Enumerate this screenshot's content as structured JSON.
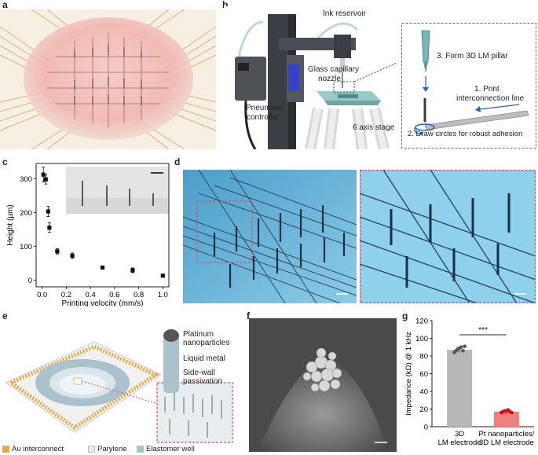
{
  "panels": {
    "a": "a",
    "b": "b",
    "c": "c",
    "d": "d",
    "e": "e",
    "f": "f",
    "g": "g"
  },
  "panel_b": {
    "ink_reservoir": "Ink reservoir",
    "glass_capillary": "Glass capillary",
    "nozzle": "nozzle",
    "pneumatic": "Pneumatic",
    "controller": "controller",
    "stage": "6 axis stage",
    "step3": "3. Form 3D LM pillar",
    "step1a": "1. Print",
    "step1b": "interconnection line",
    "step2": "2. Draw circles for robust adhesion"
  },
  "panel_e": {
    "pt1": "Platinum",
    "pt2": "nanoparticles",
    "lm": "Liquid metal",
    "sw1": "Side-wall",
    "sw2": "passivation",
    "legend": [
      {
        "label": "Au interconnect",
        "color": "#e9a93c"
      },
      {
        "label": "Parylene",
        "color": "#e8e8e8"
      },
      {
        "label": "Elastomer well",
        "color": "#a9c2cc"
      }
    ]
  },
  "chart_data": [
    {
      "type": "scatter",
      "panel": "c",
      "xlabel": "Printing velocity (mm/s)",
      "ylabel": "Height (µm)",
      "xlim": [
        -0.05,
        1.05
      ],
      "ylim": [
        -20,
        345
      ],
      "xticks": [
        "0.0",
        "0.2",
        "0.4",
        "0.6",
        "0.8",
        "1.0"
      ],
      "xtick_values": [
        0,
        0.2,
        0.4,
        0.6,
        0.8,
        1.0
      ],
      "yticks": [
        "0",
        "100",
        "200",
        "300"
      ],
      "ytick_values": [
        0,
        100,
        200,
        300
      ],
      "x": [
        0.01,
        0.03,
        0.05,
        0.06,
        0.125,
        0.25,
        0.5,
        0.75,
        1.0
      ],
      "y": [
        312,
        298,
        203,
        155,
        85,
        72,
        37,
        29,
        13
      ],
      "err": [
        22,
        14,
        15,
        14,
        8,
        8,
        3,
        7,
        3
      ]
    },
    {
      "type": "bar",
      "panel": "g",
      "ylabel": "Impedance (kΩ) @ 1 kHz",
      "ylim": [
        0,
        120
      ],
      "yticks": [
        "0",
        "20",
        "40",
        "60",
        "80",
        "100",
        "120"
      ],
      "ytick_values": [
        0,
        20,
        40,
        60,
        80,
        100,
        120
      ],
      "categories": [
        [
          "3D",
          "LM electrode"
        ],
        [
          "Pt nanoparticles/",
          "3D  LM electrode"
        ]
      ],
      "values": [
        87,
        17
      ],
      "colors": [
        "#b8b8b8",
        "#f08080"
      ],
      "dot_colors": [
        "#555555",
        "#cc1111"
      ],
      "points": [
        [
          84,
          86,
          88,
          89,
          90,
          86,
          91
        ],
        [
          16,
          17,
          18,
          18,
          19,
          17,
          16
        ]
      ],
      "significance": "***"
    }
  ]
}
